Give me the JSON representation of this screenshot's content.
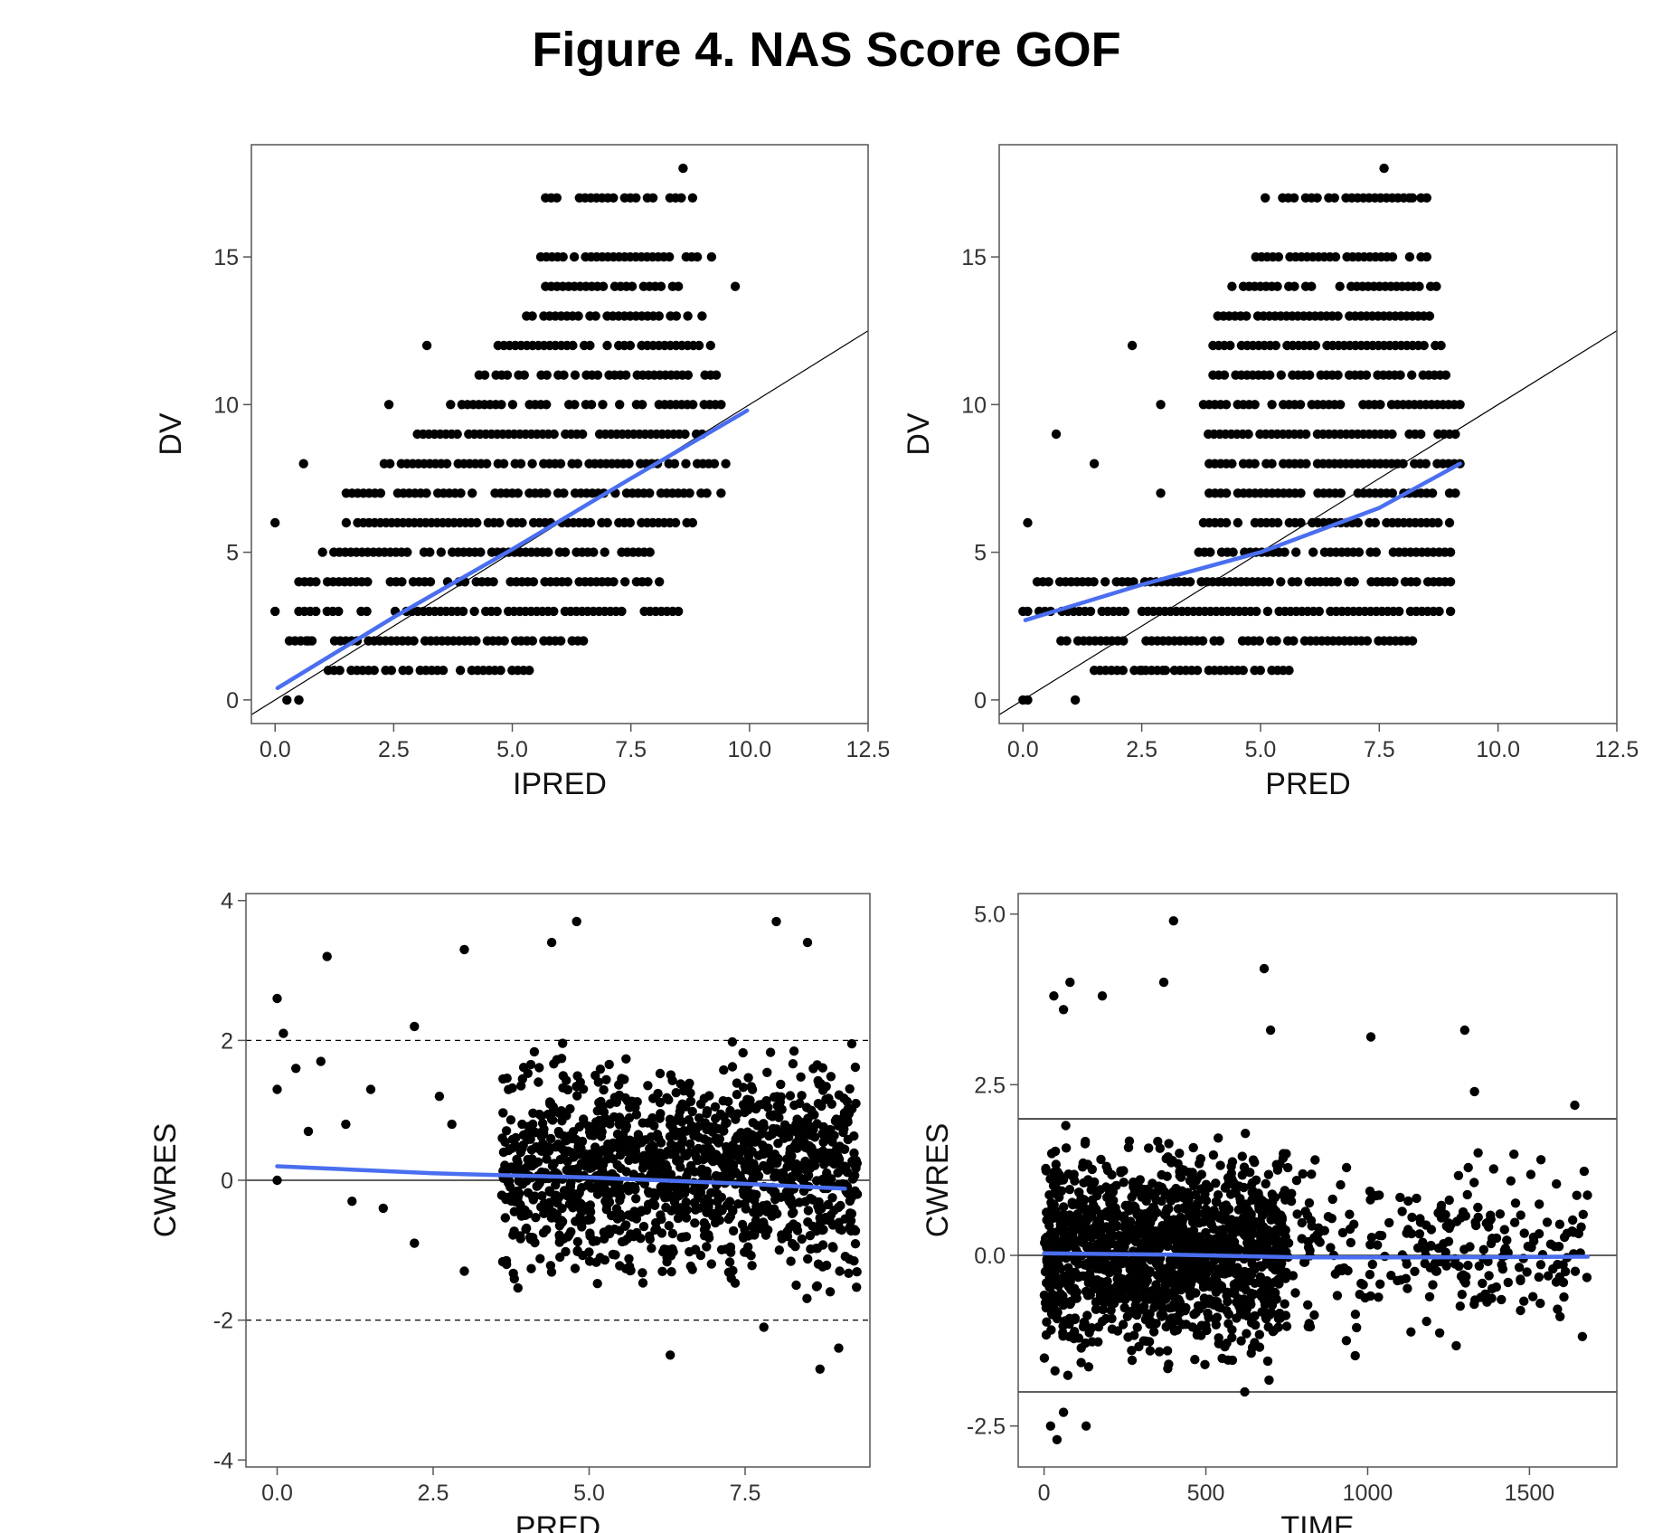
{
  "figure": {
    "title": "Figure 4. NAS Score GOF"
  },
  "colors": {
    "points": "#000000",
    "smooth": "#4a6ef0",
    "reference": "#000000",
    "frame": "#555555"
  },
  "chart_data": [
    {
      "type": "scatter",
      "id": "dv-vs-ipred",
      "xlabel": "IPRED",
      "ylabel": "DV",
      "xlim": [
        -0.5,
        12.5
      ],
      "ylim": [
        -0.8,
        18.8
      ],
      "xticks": [
        "0.0",
        "2.5",
        "5.0",
        "7.5",
        "10.0",
        "12.5"
      ],
      "yticks": [
        "0",
        "5",
        "10",
        "15"
      ],
      "reference": {
        "kind": "identity"
      },
      "smooth": {
        "x": [
          0.05,
          2.5,
          5.0,
          7.5,
          9.95
        ],
        "y": [
          0.4,
          2.8,
          5.1,
          7.5,
          9.8
        ]
      },
      "points": {
        "rows": [
          [
            0,
            0,
            0.5
          ],
          [
            1,
            1,
            5.6
          ],
          [
            2,
            0.3,
            6.5
          ],
          [
            3,
            0.5,
            8.5
          ],
          [
            4,
            0.5,
            8.1
          ],
          [
            5,
            1.0,
            7.9
          ],
          [
            6,
            1.5,
            8.8
          ],
          [
            7,
            1.5,
            9.1
          ],
          [
            8,
            2.3,
            9.5
          ],
          [
            9,
            3.0,
            9.0
          ],
          [
            10,
            3.7,
            9.4
          ],
          [
            11,
            4.3,
            9.3
          ],
          [
            12,
            4.7,
            9.3
          ],
          [
            13,
            5.3,
            8.7
          ],
          [
            14,
            5.7,
            8.5
          ],
          [
            15,
            5.6,
            8.9
          ],
          [
            17,
            5.7,
            8.8
          ]
        ],
        "extra": [
          [
            0,
            6
          ],
          [
            0.6,
            8
          ],
          [
            2.4,
            10
          ],
          [
            3.2,
            12
          ],
          [
            0.5,
            0
          ],
          [
            0,
            3
          ],
          [
            0.7,
            2
          ],
          [
            9.4,
            7
          ],
          [
            9.0,
            13
          ],
          [
            9.7,
            14
          ],
          [
            8.6,
            18
          ],
          [
            9.2,
            15
          ]
        ]
      }
    },
    {
      "type": "scatter",
      "id": "dv-vs-pred",
      "xlabel": "PRED",
      "ylabel": "DV",
      "xlim": [
        -0.5,
        12.5
      ],
      "ylim": [
        -0.8,
        18.8
      ],
      "xticks": [
        "0.0",
        "2.5",
        "5.0",
        "7.5",
        "10.0",
        "12.5"
      ],
      "yticks": [
        "0",
        "5",
        "10",
        "15"
      ],
      "reference": {
        "kind": "identity"
      },
      "smooth": {
        "x": [
          0.05,
          2.5,
          5.0,
          7.5,
          9.2
        ],
        "y": [
          2.7,
          3.9,
          5.0,
          6.5,
          8.0
        ]
      },
      "points": {
        "rows": [
          [
            0,
            0,
            0.1
          ],
          [
            1,
            1.5,
            5.6
          ],
          [
            2,
            0.8,
            8.2
          ],
          [
            3,
            0.1,
            9.0
          ],
          [
            4,
            0.3,
            9.0
          ],
          [
            5,
            3.7,
            9.0
          ],
          [
            6,
            3.8,
            9.1
          ],
          [
            7,
            3.8,
            9.1
          ],
          [
            8,
            3.8,
            9.2
          ],
          [
            9,
            3.9,
            9.1
          ],
          [
            10,
            3.8,
            9.2
          ],
          [
            11,
            4.0,
            8.9
          ],
          [
            12,
            4.0,
            8.8
          ],
          [
            13,
            4.1,
            8.8
          ],
          [
            14,
            4.4,
            8.7
          ],
          [
            15,
            4.9,
            8.5
          ],
          [
            17,
            5.1,
            8.5
          ]
        ],
        "extra": [
          [
            0.1,
            6
          ],
          [
            0.7,
            9
          ],
          [
            2.3,
            12
          ],
          [
            1.5,
            8
          ],
          [
            1.1,
            0
          ],
          [
            0,
            3
          ],
          [
            2.9,
            10
          ],
          [
            2.9,
            7
          ],
          [
            7.6,
            18
          ],
          [
            8.2,
            17
          ],
          [
            3.0,
            1
          ],
          [
            2.5,
            1
          ]
        ]
      }
    },
    {
      "type": "scatter",
      "id": "cwres-vs-pred",
      "xlabel": "PRED",
      "ylabel": "CWRES",
      "xlim": [
        -0.5,
        9.5
      ],
      "ylim": [
        -4.1,
        4.1
      ],
      "xticks": [
        "0.0",
        "2.5",
        "5.0",
        "7.5"
      ],
      "yticks": [
        "-4",
        "-2",
        "0",
        "2",
        "4"
      ],
      "reference": {
        "kind": "hlines",
        "solid": [
          0
        ],
        "dashed": [
          -2,
          2
        ]
      },
      "smooth": {
        "x": [
          0,
          2.5,
          5.0,
          7.5,
          9.1
        ],
        "y": [
          0.2,
          0.1,
          0.04,
          -0.05,
          -0.12
        ]
      },
      "points": {
        "dense": {
          "xmin": 3.6,
          "xmax": 9.3,
          "ymin": -1.9,
          "ymax": 2.3,
          "n": 1300
        },
        "extra": [
          [
            0,
            2.6
          ],
          [
            0.1,
            2.1
          ],
          [
            0.8,
            3.2
          ],
          [
            3.0,
            3.3
          ],
          [
            2.2,
            2.2
          ],
          [
            4.4,
            3.4
          ],
          [
            4.8,
            3.7
          ],
          [
            8.0,
            3.7
          ],
          [
            8.5,
            3.4
          ],
          [
            0,
            1.3
          ],
          [
            0.3,
            1.6
          ],
          [
            0.7,
            1.7
          ],
          [
            0.5,
            0.7
          ],
          [
            1.1,
            0.8
          ],
          [
            1.5,
            1.3
          ],
          [
            2.2,
            -0.9
          ],
          [
            3.0,
            -1.3
          ],
          [
            6.3,
            -2.5
          ],
          [
            8.7,
            -2.7
          ],
          [
            9.0,
            -2.4
          ],
          [
            7.8,
            -2.1
          ],
          [
            0,
            0
          ],
          [
            1.2,
            -0.3
          ],
          [
            1.7,
            -0.4
          ],
          [
            2.6,
            1.2
          ],
          [
            2.8,
            0.8
          ]
        ]
      }
    },
    {
      "type": "scatter",
      "id": "cwres-vs-time",
      "xlabel": "TIME",
      "ylabel": "CWRES",
      "xlim": [
        -80,
        1770
      ],
      "ylim": [
        -3.1,
        5.3
      ],
      "xticks": [
        "0",
        "500",
        "1000",
        "1500"
      ],
      "yticks": [
        "-2.5",
        "0.0",
        "2.5",
        "5.0"
      ],
      "reference": {
        "kind": "hlines",
        "solid": [
          -2,
          0,
          2
        ],
        "dashed": []
      },
      "smooth": {
        "x": [
          0,
          400,
          800,
          1200,
          1680
        ],
        "y": [
          0.03,
          0.01,
          -0.03,
          -0.03,
          -0.02
        ]
      },
      "points": {
        "dense": {
          "xmin": 0,
          "xmax": 750,
          "ymin": -1.9,
          "ymax": 2.1,
          "n": 1400
        },
        "sparse": {
          "xmin": 750,
          "xmax": 1680,
          "ymin": -1.7,
          "ymax": 1.8,
          "n": 260
        },
        "extra": [
          [
            400,
            4.9
          ],
          [
            680,
            4.2
          ],
          [
            370,
            4.0
          ],
          [
            80,
            4.0
          ],
          [
            30,
            3.8
          ],
          [
            60,
            3.6
          ],
          [
            180,
            3.8
          ],
          [
            1300,
            3.3
          ],
          [
            1010,
            3.2
          ],
          [
            700,
            3.3
          ],
          [
            1330,
            2.4
          ],
          [
            1640,
            2.2
          ],
          [
            20,
            -2.5
          ],
          [
            40,
            -2.7
          ],
          [
            130,
            -2.5
          ],
          [
            620,
            -2.0
          ],
          [
            60,
            -2.3
          ]
        ]
      }
    }
  ]
}
